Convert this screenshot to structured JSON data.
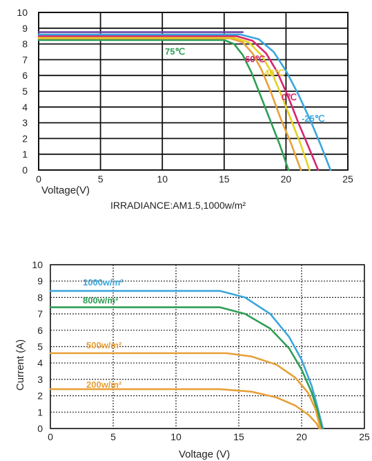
{
  "chart_data": [
    {
      "type": "line",
      "title": "",
      "xlabel": "Voltage(V)",
      "ylabel": "",
      "note": "IRRADIANCE:AM1.5,1000w/m²",
      "xlim": [
        0,
        25
      ],
      "ylim": [
        0,
        10
      ],
      "x_ticks": [
        "0",
        "5",
        "10",
        "15",
        "20",
        "25"
      ],
      "y_ticks": [
        "0",
        "1",
        "2",
        "3",
        "4",
        "5",
        "6",
        "7",
        "8",
        "9",
        "10"
      ],
      "grid": "solid",
      "series": [
        {
          "name": "75℃",
          "color": "#2e9e55",
          "points": [
            [
              0,
              8.25
            ],
            [
              15,
              8.25
            ],
            [
              15.8,
              8.0
            ],
            [
              16.5,
              7.3
            ],
            [
              17.2,
              6.2
            ],
            [
              18.0,
              4.6
            ],
            [
              18.8,
              3.0
            ],
            [
              19.5,
              1.6
            ],
            [
              20.2,
              0
            ]
          ]
        },
        {
          "name": "60℃",
          "color": "#e8a038",
          "points": [
            [
              0,
              8.35
            ],
            [
              15.5,
              8.35
            ],
            [
              16.5,
              8.1
            ],
            [
              17.3,
              7.4
            ],
            [
              18.0,
              6.4
            ],
            [
              18.8,
              4.9
            ],
            [
              19.6,
              3.2
            ],
            [
              20.4,
              1.7
            ],
            [
              21.2,
              0
            ]
          ]
        },
        {
          "name": "40℃",
          "color": "#e6d020",
          "points": [
            [
              0,
              8.4
            ],
            [
              15.8,
              8.4
            ],
            [
              17.0,
              8.1
            ],
            [
              18.0,
              7.3
            ],
            [
              18.9,
              6.1
            ],
            [
              19.7,
              4.6
            ],
            [
              20.5,
              3.0
            ],
            [
              21.2,
              1.6
            ],
            [
              21.9,
              0
            ]
          ]
        },
        {
          "name": "0℃",
          "color": "#d6246e",
          "points": [
            [
              0,
              8.5
            ],
            [
              16.0,
              8.5
            ],
            [
              17.3,
              8.2
            ],
            [
              18.4,
              7.4
            ],
            [
              19.3,
              6.2
            ],
            [
              20.2,
              4.6
            ],
            [
              21.0,
              3.0
            ],
            [
              21.8,
              1.5
            ],
            [
              22.6,
              0
            ]
          ]
        },
        {
          "name": "-25℃",
          "color": "#3aa6dc",
          "points": [
            [
              0,
              8.6
            ],
            [
              16.3,
              8.6
            ],
            [
              17.8,
              8.3
            ],
            [
              19.0,
              7.5
            ],
            [
              20.0,
              6.3
            ],
            [
              21.0,
              4.8
            ],
            [
              22.0,
              3.1
            ],
            [
              22.8,
              1.6
            ],
            [
              23.6,
              0
            ]
          ]
        },
        {
          "name": "",
          "color": "#6a3fa0",
          "points": [
            [
              0,
              8.75
            ],
            [
              16.5,
              8.75
            ]
          ]
        }
      ]
    },
    {
      "type": "line",
      "title": "",
      "xlabel": "Voltage (V)",
      "ylabel": "Current (A)",
      "xlim": [
        0,
        25
      ],
      "ylim": [
        0,
        10
      ],
      "x_ticks": [
        "0",
        "5",
        "10",
        "15",
        "20",
        "25"
      ],
      "y_ticks": [
        "0",
        "1",
        "2",
        "3",
        "4",
        "5",
        "6",
        "7",
        "8",
        "9",
        "10"
      ],
      "grid": "dotted",
      "series": [
        {
          "name": "1000w/m²",
          "color": "#3aa6dc",
          "points": [
            [
              0,
              8.4
            ],
            [
              13.5,
              8.4
            ],
            [
              15.5,
              8.0
            ],
            [
              17.5,
              7.0
            ],
            [
              19.0,
              5.6
            ],
            [
              20.0,
              4.2
            ],
            [
              20.8,
              2.6
            ],
            [
              21.3,
              1.2
            ],
            [
              21.7,
              0
            ]
          ]
        },
        {
          "name": "800w/m²",
          "color": "#2e9e55",
          "points": [
            [
              0,
              7.4
            ],
            [
              13.5,
              7.4
            ],
            [
              15.5,
              7.0
            ],
            [
              17.5,
              6.1
            ],
            [
              19.0,
              4.9
            ],
            [
              20.0,
              3.6
            ],
            [
              20.8,
              2.2
            ],
            [
              21.3,
              1.0
            ],
            [
              21.6,
              0
            ]
          ]
        },
        {
          "name": "500w/m²",
          "color": "#e8a038",
          "points": [
            [
              0,
              4.6
            ],
            [
              14.0,
              4.6
            ],
            [
              16.0,
              4.4
            ],
            [
              18.0,
              3.9
            ],
            [
              19.5,
              3.1
            ],
            [
              20.5,
              2.2
            ],
            [
              21.1,
              1.2
            ],
            [
              21.5,
              0
            ]
          ]
        },
        {
          "name": "200w/m²",
          "color": "#e8a038",
          "points": [
            [
              0,
              2.4
            ],
            [
              13.5,
              2.4
            ],
            [
              16.0,
              2.25
            ],
            [
              18.0,
              1.9
            ],
            [
              19.5,
              1.4
            ],
            [
              20.6,
              0.8
            ],
            [
              21.2,
              0.3
            ],
            [
              21.4,
              0
            ]
          ]
        }
      ]
    }
  ],
  "labels_top": {
    "t75": "75℃",
    "t60": "60℃",
    "t40": "40℃",
    "t0": "0℃",
    "tm25": "-25℃"
  },
  "labels_bottom": {
    "i1000": "1000w/m²",
    "i800": "800w/m²",
    "i500": "500w/m²",
    "i200": "200w/m²"
  }
}
